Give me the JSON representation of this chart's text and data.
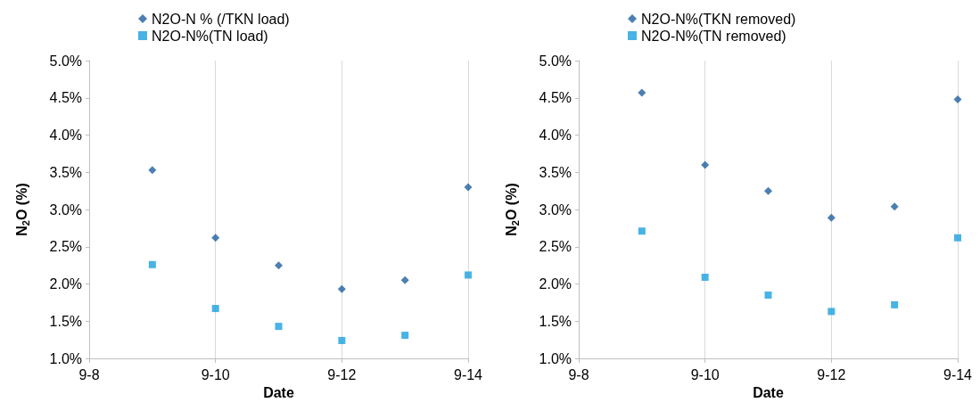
{
  "chart_data": [
    {
      "type": "scatter",
      "xlabel": "Date",
      "ylabel": "N$_{2}$O (%)",
      "x": [
        "--09-09",
        "--09-10",
        "--09-11",
        "--09-12",
        "--09-13",
        "--09-14"
      ],
      "series": [
        {
          "name": "N2O-N % (/TKN load)",
          "color": "#1f5f9f",
          "marker": "diamond",
          "values": [
            3.53,
            2.62,
            2.25,
            1.93,
            2.05,
            3.3
          ]
        },
        {
          "name": "N2O-N%(TN load)",
          "color": "#1aa0df",
          "marker": "square",
          "values": [
            2.26,
            1.67,
            1.43,
            1.24,
            1.31,
            2.12
          ]
        }
      ],
      "xlim": [
        "--09-08",
        "--09-14"
      ],
      "xticks": [
        {
          "value": "--09-08",
          "label": "9-8"
        },
        {
          "value": "--09-10",
          "label": "9-10"
        },
        {
          "value": "--09-12",
          "label": "9-12"
        },
        {
          "value": "--09-14",
          "label": "9-14"
        }
      ],
      "ylim": [
        1,
        5
      ],
      "yticks": [
        {
          "value": 1,
          "label": "1.0%"
        },
        {
          "value": 1.5,
          "label": "1.5%"
        },
        {
          "value": 2,
          "label": "2.0%"
        },
        {
          "value": 2.5,
          "label": "2.5%"
        },
        {
          "value": 3,
          "label": "3.0%"
        },
        {
          "value": 3.5,
          "label": "3.5%"
        },
        {
          "value": 4,
          "label": "4.0%"
        },
        {
          "value": 4.5,
          "label": "4.5%"
        },
        {
          "value": 5,
          "label": "5.0%"
        }
      ],
      "grid": "x",
      "legend": "top"
    },
    {
      "type": "scatter",
      "xlabel": "Date",
      "ylabel": "N$_{2}$O (%)",
      "x": [
        "--09-09",
        "--09-10",
        "--09-11",
        "--09-12",
        "--09-13",
        "--09-14"
      ],
      "series": [
        {
          "name": "N2O-N%(TKN removed)",
          "color": "#1f5f9f",
          "marker": "diamond",
          "values": [
            4.57,
            3.6,
            3.25,
            2.89,
            3.04,
            4.48
          ]
        },
        {
          "name": "N2O-N%(TN removed)",
          "color": "#1aa0df",
          "marker": "square",
          "values": [
            2.71,
            2.09,
            1.85,
            1.63,
            1.72,
            2.62
          ]
        }
      ],
      "xlim": [
        "--09-08",
        "--09-14"
      ],
      "xticks": [
        {
          "value": "--09-08",
          "label": "9-8"
        },
        {
          "value": "--09-10",
          "label": "9-10"
        },
        {
          "value": "--09-12",
          "label": "9-12"
        },
        {
          "value": "--09-14",
          "label": "9-14"
        }
      ],
      "ylim": [
        1,
        5
      ],
      "yticks": [
        {
          "value": 1,
          "label": "1.0%"
        },
        {
          "value": 1.5,
          "label": "1.5%"
        },
        {
          "value": 2,
          "label": "2.0%"
        },
        {
          "value": 2.5,
          "label": "2.5%"
        },
        {
          "value": 3,
          "label": "3.0%"
        },
        {
          "value": 3.5,
          "label": "3.5%"
        },
        {
          "value": 4,
          "label": "4.0%"
        },
        {
          "value": 4.5,
          "label": "4.5%"
        },
        {
          "value": 5,
          "label": "5.0%"
        }
      ],
      "grid": "x",
      "legend": "top"
    }
  ]
}
